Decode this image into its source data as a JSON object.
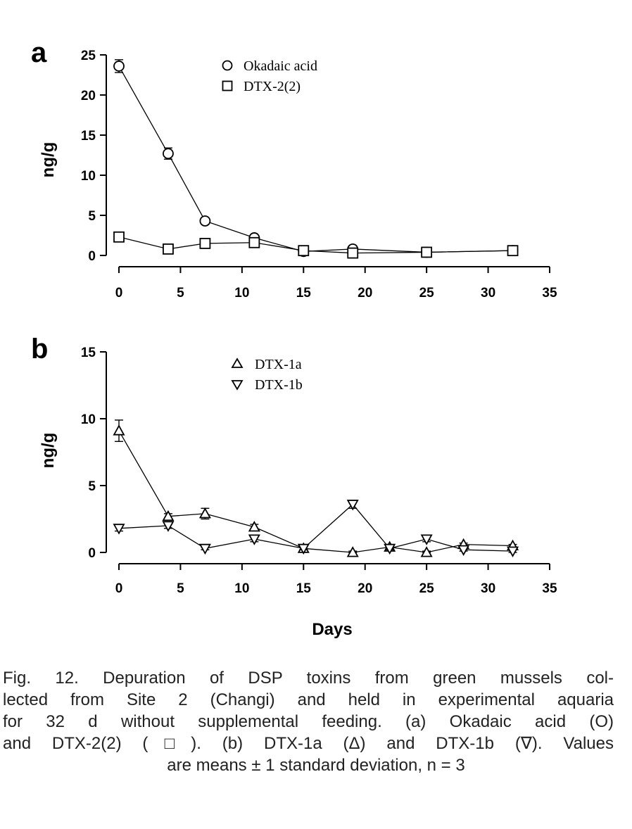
{
  "chart_data": [
    {
      "panel": "a",
      "type": "line",
      "ylabel": "ng/g",
      "xlabel": "",
      "xlim": [
        0,
        35
      ],
      "ylim": [
        0,
        25
      ],
      "xticks": [
        "0",
        "5",
        "10",
        "15",
        "20",
        "25",
        "30",
        "35"
      ],
      "yticks": [
        "0",
        "5",
        "10",
        "15",
        "20",
        "25"
      ],
      "legend_position": "top-center",
      "series": [
        {
          "name": "Okadaic acid",
          "marker": "circle",
          "points": [
            {
              "x": 0,
              "y": 23.6,
              "sd": 0.8
            },
            {
              "x": 4,
              "y": 12.7,
              "sd": 0.7
            },
            {
              "x": 7,
              "y": 4.3,
              "sd": 0.4
            },
            {
              "x": 11,
              "y": 2.2,
              "sd": 0.2
            },
            {
              "x": 15,
              "y": 0.5,
              "sd": 0.1
            },
            {
              "x": 19,
              "y": 0.8,
              "sd": 0.1
            },
            {
              "x": 25,
              "y": 0.4,
              "sd": 0.1
            },
            {
              "x": 32,
              "y": 0.6,
              "sd": 0.1
            }
          ]
        },
        {
          "name": "DTX-2(2)",
          "marker": "square",
          "points": [
            {
              "x": 0,
              "y": 2.3,
              "sd": 0.6
            },
            {
              "x": 4,
              "y": 0.8,
              "sd": 0.1
            },
            {
              "x": 7,
              "y": 1.5,
              "sd": 0.2
            },
            {
              "x": 11,
              "y": 1.6,
              "sd": 0.3
            },
            {
              "x": 15,
              "y": 0.6,
              "sd": 0.1
            },
            {
              "x": 19,
              "y": 0.3,
              "sd": 0.1
            },
            {
              "x": 25,
              "y": 0.4,
              "sd": 0.1
            },
            {
              "x": 32,
              "y": 0.6,
              "sd": 0.1
            }
          ]
        }
      ]
    },
    {
      "panel": "b",
      "type": "line",
      "ylabel": "ng/g",
      "xlabel": "Days",
      "xlim": [
        0,
        35
      ],
      "ylim": [
        0,
        15
      ],
      "xticks": [
        "0",
        "5",
        "10",
        "15",
        "20",
        "25",
        "30",
        "35"
      ],
      "yticks": [
        "0",
        "5",
        "10",
        "15"
      ],
      "legend_position": "top-center",
      "series": [
        {
          "name": "DTX-1a",
          "marker": "triangle-up",
          "points": [
            {
              "x": 0,
              "y": 9.1,
              "sd": 0.8
            },
            {
              "x": 4,
              "y": 2.7,
              "sd": 0.2
            },
            {
              "x": 7,
              "y": 2.9,
              "sd": 0.4
            },
            {
              "x": 11,
              "y": 1.9,
              "sd": 0.2
            },
            {
              "x": 15,
              "y": 0.3,
              "sd": 0.1
            },
            {
              "x": 19,
              "y": 0.0,
              "sd": 0.1
            },
            {
              "x": 22,
              "y": 0.4,
              "sd": 0.1
            },
            {
              "x": 25,
              "y": 0.0,
              "sd": 0.1
            },
            {
              "x": 28,
              "y": 0.6,
              "sd": 0.1
            },
            {
              "x": 32,
              "y": 0.5,
              "sd": 0.1
            }
          ]
        },
        {
          "name": "DTX-1b",
          "marker": "triangle-down",
          "points": [
            {
              "x": 0,
              "y": 1.8,
              "sd": 0.2
            },
            {
              "x": 4,
              "y": 2.0,
              "sd": 0.2
            },
            {
              "x": 7,
              "y": 0.3,
              "sd": 0.1
            },
            {
              "x": 11,
              "y": 1.0,
              "sd": 0.2
            },
            {
              "x": 15,
              "y": 0.3,
              "sd": 0.1
            },
            {
              "x": 19,
              "y": 3.6,
              "sd": 0.3
            },
            {
              "x": 22,
              "y": 0.3,
              "sd": 0.1
            },
            {
              "x": 25,
              "y": 1.0,
              "sd": 0.2
            },
            {
              "x": 28,
              "y": 0.2,
              "sd": 0.1
            },
            {
              "x": 32,
              "y": 0.1,
              "sd": 0.1
            }
          ]
        }
      ]
    }
  ],
  "caption": {
    "lines": [
      "Fig. 12. Depuration of DSP toxins from green mussels col-",
      "lected from Site 2 (Changi) and held in experimental aquaria",
      "for 32 d without supplemental feeding. (a) Okadaic acid (O)",
      "and DTX-2(2) (□). (b) DTX-1a (Δ) and DTX-1b (∇). Values",
      "are means ± 1 standard deviation, n = 3"
    ]
  }
}
